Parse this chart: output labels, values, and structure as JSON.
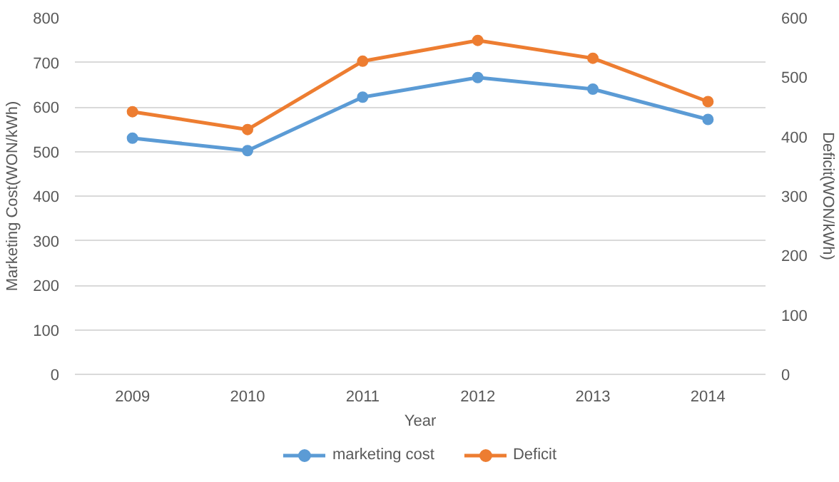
{
  "chart_data": {
    "type": "line",
    "xlabel": "Year",
    "ylabel": "Marketing Cost(WON/kWh)",
    "y2label": "Deficit(WON/kWh)",
    "categories": [
      "2009",
      "2010",
      "2011",
      "2012",
      "2013",
      "2014"
    ],
    "series": [
      {
        "name": "marketing cost",
        "color": "#5b9bd5",
        "values": [
          530,
          502,
          622,
          666,
          640,
          572
        ]
      },
      {
        "name": "Deficit",
        "color": "#ed7d31",
        "axis": "y2",
        "values": [
          442,
          412,
          527,
          562,
          532,
          459
        ]
      }
    ],
    "ylim": [
      0,
      800
    ],
    "yticks": [
      0,
      100,
      200,
      300,
      400,
      500,
      600,
      700,
      800
    ],
    "y2lim": [
      0,
      600
    ],
    "y2ticks": [
      0,
      100,
      200,
      300,
      400,
      500,
      600
    ],
    "grid": "y",
    "legend": "bottom",
    "marker": "circle",
    "line_style": "solid"
  }
}
